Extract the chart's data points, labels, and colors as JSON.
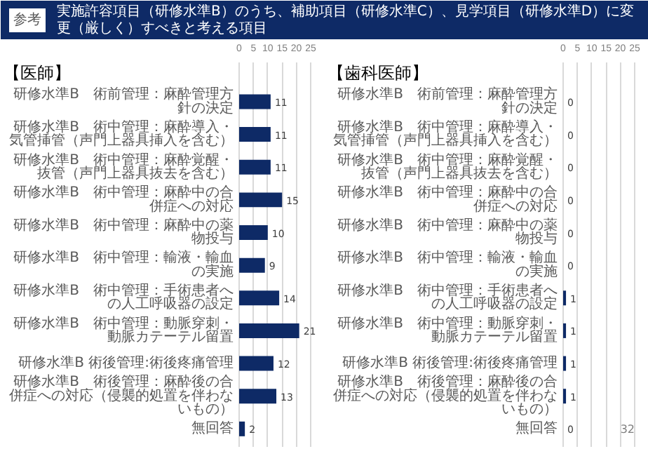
{
  "chart_data": [
    {
      "type": "bar",
      "orientation": "horizontal",
      "title": "実施許容項目（研修水準B）のうち、補助項目（研修水準C）、見学項目（研修水準D）に変更（厳しく）すべきと考える項目",
      "subtitle": "【医師】",
      "annotations": [
        "参考"
      ],
      "categories": [
        "研修水準B　術前管理：麻酔管理方針の決定",
        "研修水準B　術中管理：麻酔導入・気管挿管（声門上器具挿入を含む）",
        "研修水準B　術中管理：麻酔覚醒・抜管（声門上器具抜去を含む）",
        "研修水準B　術中管理：麻酔中の合併症への対応",
        "研修水準B　術中管理：麻酔中の薬物投与",
        "研修水準B　術中管理：輸液・輸血の実施",
        "研修水準B　術中管理：手術患者への人工呼吸器の設定",
        "研修水準B　術中管理：動脈穿刺・動脈カテーテル留置",
        "研修水準B 術後管理:術後疼痛管理",
        "研修水準B　術後管理：麻酔後の合併症への対応（侵襲的処置を伴わないもの）",
        "無回答"
      ],
      "values": [
        11,
        11,
        11,
        15,
        10,
        9,
        14,
        21,
        12,
        13,
        2
      ],
      "color": "#0e2a66",
      "xlim": [
        0,
        25
      ],
      "xticks": [
        0,
        5,
        10,
        15,
        20,
        25
      ],
      "grid": "x",
      "data_labels": true
    },
    {
      "type": "bar",
      "orientation": "horizontal",
      "subtitle": "【歯科医師】",
      "annotations": [
        "32"
      ],
      "categories": [
        "研修水準B　術前管理：麻酔管理方針の決定",
        "研修水準B　術中管理：麻酔導入・気管挿管（声門上器具挿入を含む）",
        "研修水準B　術中管理：麻酔覚醒・抜管（声門上器具抜去を含む）",
        "研修水準B　術中管理：麻酔中の合併症への対応",
        "研修水準B　術中管理：麻酔中の薬物投与",
        "研修水準B　術中管理：輸液・輸血の実施",
        "研修水準B　術中管理：手術患者への人工呼吸器の設定",
        "研修水準B　術中管理：動脈穿刺・動脈カテーテル留置",
        "研修水準B 術後管理:術後疼痛管理",
        "研修水準B　術後管理：麻酔後の合併症への対応（侵襲的処置を伴わないもの）",
        "無回答"
      ],
      "values": [
        0,
        0,
        0,
        0,
        0,
        0,
        1,
        1,
        1,
        1,
        0
      ],
      "color": "#0e2a66",
      "xlim": [
        0,
        25
      ],
      "xticks": [
        0,
        5,
        10,
        15,
        20,
        25
      ],
      "grid": "x",
      "data_labels": true
    }
  ]
}
